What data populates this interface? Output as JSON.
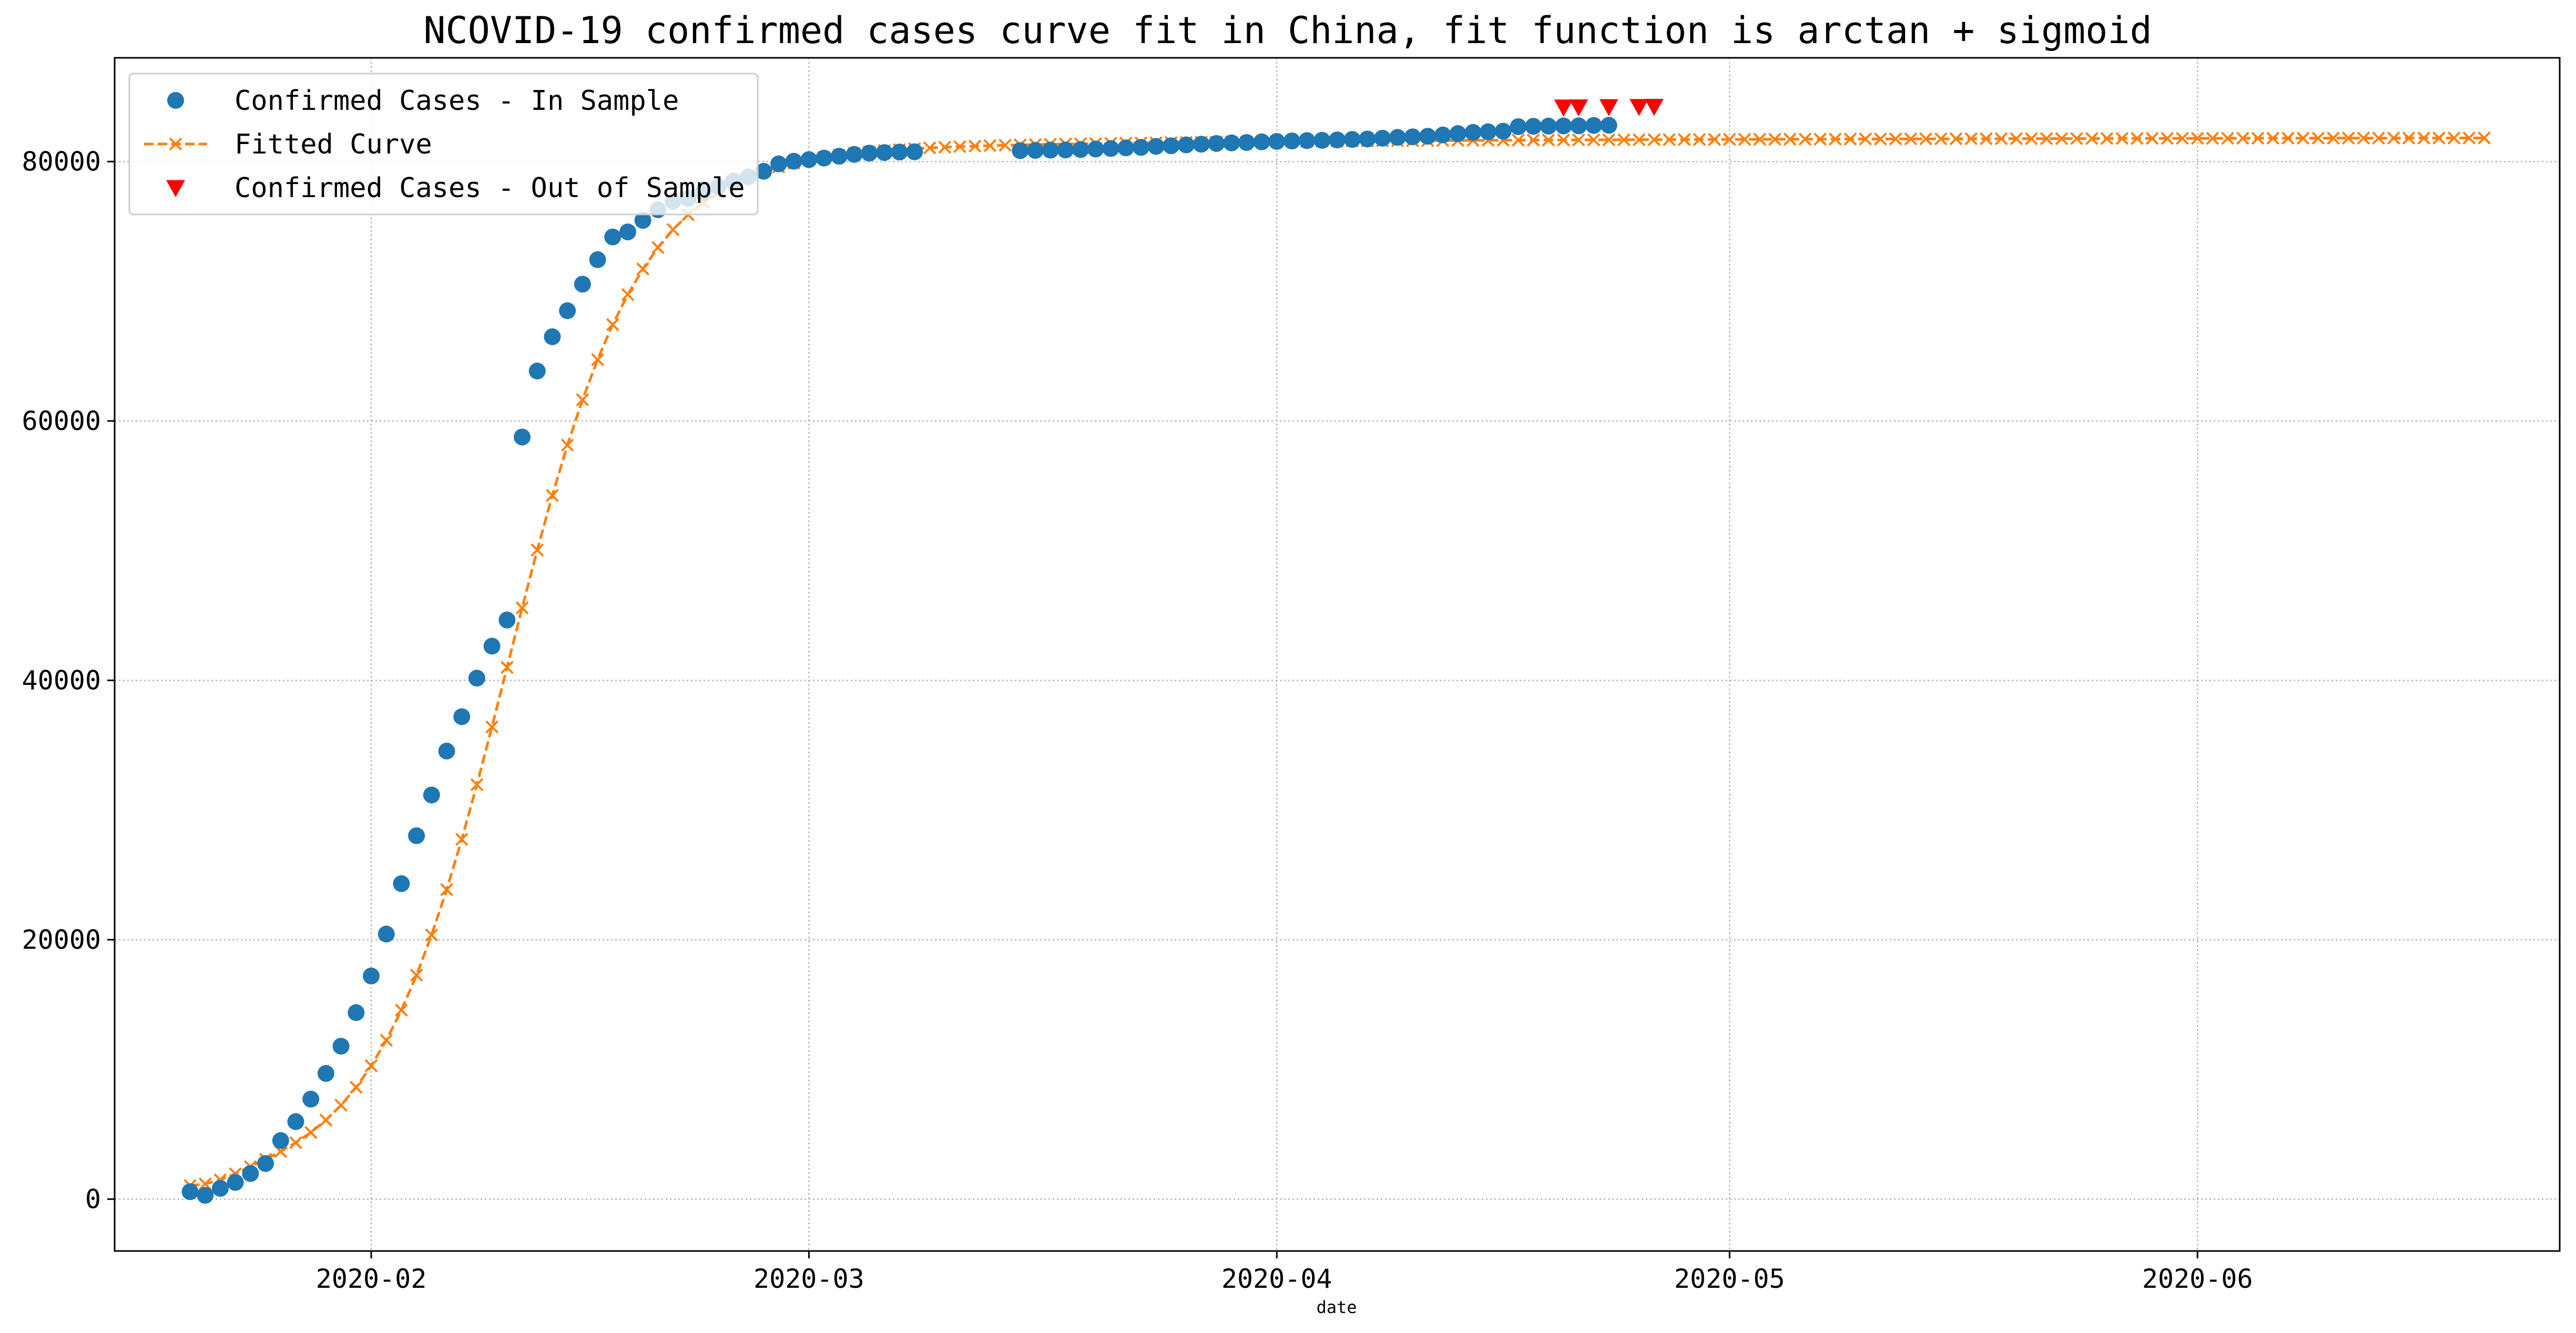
{
  "chart_data": {
    "type": "line",
    "title": "NCOVID-19 confirmed cases curve fit in China, fit function is arctan + sigmoid",
    "xlabel": "date",
    "ylabel": "",
    "x_axis_type": "date",
    "xlim": [
      "2020-01-15",
      "2020-06-25"
    ],
    "ylim": [
      -4000,
      88000
    ],
    "xticks": [
      "2020-02-01",
      "2020-03-01",
      "2020-04-01",
      "2020-05-01",
      "2020-06-01"
    ],
    "xtick_labels": [
      "2020-02",
      "2020-03",
      "2020-04",
      "2020-05",
      "2020-06"
    ],
    "yticks": [
      0,
      20000,
      40000,
      60000,
      80000
    ],
    "ytick_labels": [
      "0",
      "20000",
      "40000",
      "60000",
      "80000"
    ],
    "grid": true,
    "legend_position": "top-left",
    "series": [
      {
        "name": "Confirmed Cases - In Sample",
        "color": "#1f77b4",
        "marker": "circle",
        "linestyle": "none",
        "x_start": "2020-01-20",
        "x_step_days": 1,
        "segments": [
          {
            "start": "2020-01-20",
            "values": [
              571,
              291,
              830,
              1287,
              1975,
              2744,
              4515,
              5974,
              7711,
              9692,
              11791,
              14380,
              17205,
              20438,
              24324,
              28018,
              31161,
              34546,
              37198,
              40171,
              42638,
              44653,
              58761,
              63851,
              66492,
              68500,
              70548,
              72436,
              74185,
              74576,
              75465,
              76288,
              76936,
              77150,
              77658,
              78064,
              78497,
              78824,
              79251,
              79824,
              80026,
              80151,
              80270,
              80409,
              80552,
              80651,
              80695,
              80735,
              80754
            ]
          },
          {
            "start": "2020-03-15",
            "values": [
              80844,
              80860,
              80881,
              80894,
              80928,
              80967,
              81008,
              81054,
              81093,
              81171,
              81218,
              81285,
              81340,
              81394,
              81439,
              81470,
              81518,
              81554,
              81589,
              81620,
              81639,
              81669,
              81708,
              81740,
              81802,
              81865,
              81907,
              81953,
              82052,
              82160,
              82249,
              82295,
              82341,
              82692,
              82719,
              82735,
              82747,
              82758,
              82788,
              82798
            ]
          }
        ]
      },
      {
        "name": "Fitted Curve",
        "color": "#ff7f0e",
        "marker": "x",
        "linestyle": "dashed",
        "x_start": "2020-01-20",
        "x_end": "2020-06-20",
        "x_step_days": 1,
        "model": "arctan + sigmoid",
        "asymptote": 82000
      },
      {
        "name": "Confirmed Cases - Out of Sample",
        "color": "#ff0000",
        "marker": "triangle-down",
        "linestyle": "none",
        "x": [
          "2020-04-20",
          "2020-04-21",
          "2020-04-23",
          "2020-04-25",
          "2020-04-26"
        ],
        "values": [
          84200,
          84210,
          84230,
          84240,
          84250
        ]
      }
    ]
  }
}
